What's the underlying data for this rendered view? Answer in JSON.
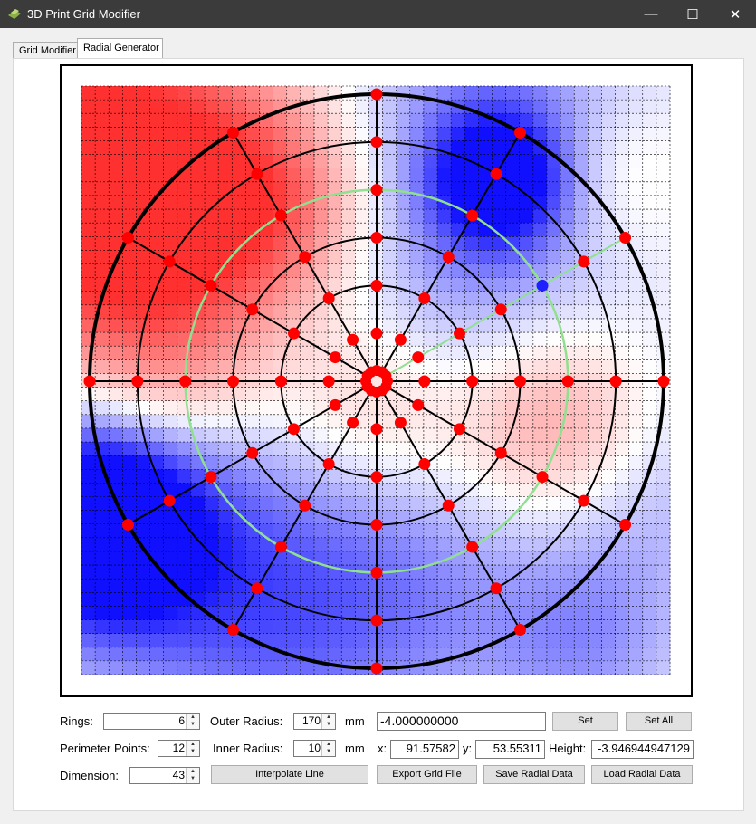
{
  "window": {
    "title": "3D Print Grid Modifier",
    "minimize_glyph": "—",
    "maximize_glyph": "☐",
    "close_glyph": "✕"
  },
  "tabs": [
    {
      "label": "Grid Modifier"
    },
    {
      "label": "Radial Generator"
    }
  ],
  "active_tab": 1,
  "colors": {
    "positive": "#ff3030",
    "negative": "#1010ff",
    "point": "#ff0000",
    "selected_point": "#1f1fff",
    "highlight": "#90e090"
  },
  "plot": {
    "grid_cells": 43,
    "rings": 6,
    "perimeter_points": 12,
    "selected_ring": 3,
    "selected_spoke": 2
  },
  "controls": {
    "rings": {
      "label": "Rings:",
      "value": "6"
    },
    "perimeter_points": {
      "label": "Perimeter Points:",
      "value": "12"
    },
    "dimension": {
      "label": "Dimension:",
      "value": "43"
    },
    "outer_radius": {
      "label": "Outer Radius:",
      "value": "170",
      "unit": "mm"
    },
    "inner_radius": {
      "label": "Inner Radius:",
      "value": "10",
      "unit": "mm"
    },
    "value_field": "-4.000000000",
    "x": {
      "label": "x:",
      "value": "91.57582"
    },
    "y": {
      "label": "y:",
      "value": "53.55311"
    },
    "height": {
      "label": "Height:",
      "value": "-3.946944947129"
    },
    "buttons": {
      "set": "Set",
      "set_all": "Set All",
      "interpolate": "Interpolate Line",
      "export": "Export Grid File",
      "save": "Save Radial Data",
      "load": "Load Radial Data"
    }
  }
}
